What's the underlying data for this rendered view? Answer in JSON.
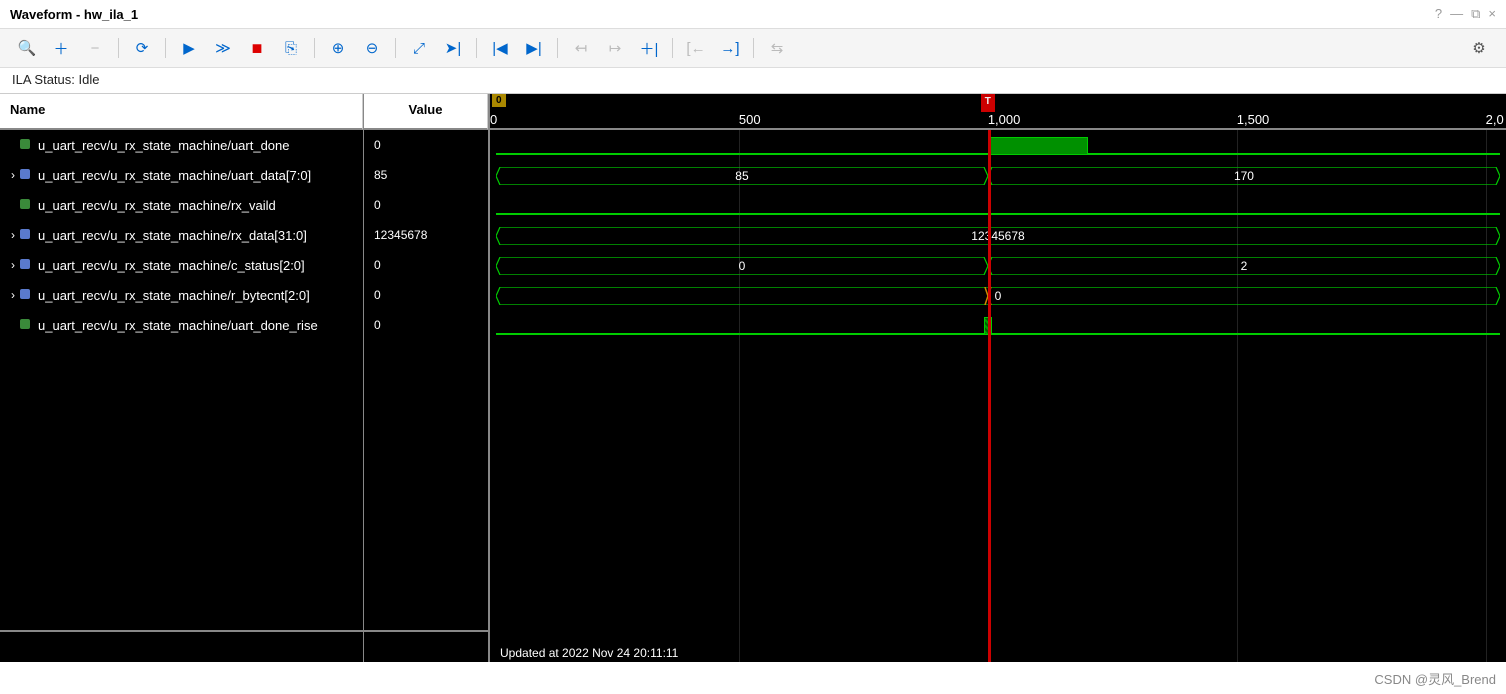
{
  "window": {
    "title": "Waveform - hw_ila_1",
    "help_icon": "?",
    "minimize_icon": "—",
    "maximize_icon": "⧉",
    "close_icon": "×"
  },
  "toolbar": {
    "search": "🔍",
    "add": "＋",
    "remove": "−",
    "refresh": "⟳",
    "play": "▶",
    "ff": "≫",
    "stop": "■",
    "export": "⎘",
    "zoom_in": "⊕",
    "zoom_out": "⊖",
    "fit": "⤢",
    "goto": "➤|",
    "first": "|◀",
    "last": "▶|",
    "prev_edge": "↤",
    "next_edge": "↦",
    "add_marker": "＋|",
    "marker_left": "[←",
    "marker_right": "→]",
    "swap": "⇆",
    "gear": "⚙"
  },
  "status": {
    "text": "ILA Status: Idle"
  },
  "columns": {
    "name": "Name",
    "value": "Value"
  },
  "ruler": {
    "min": 0,
    "max": 2000,
    "ticks": [
      {
        "pos": 0.0,
        "label": "0"
      },
      {
        "pos": 0.245,
        "label": "500"
      },
      {
        "pos": 0.49,
        "label": "1,000"
      },
      {
        "pos": 0.735,
        "label": "1,500"
      },
      {
        "pos": 0.98,
        "label": "2,0"
      }
    ],
    "grid_positions": [
      0.245,
      0.49,
      0.735,
      0.98
    ],
    "cursor_pos": 0.49,
    "cursor_label": "T",
    "zero_label": "0"
  },
  "waveform": {
    "bus_stroke": "#00cc00",
    "bus_fill": "#001800",
    "digital_stroke": "#00cc00",
    "cursor_color": "#cc0000",
    "grid_color": "#222222",
    "bg": "#000000"
  },
  "signals": [
    {
      "name": "u_uart_recv/u_rx_state_machine/uart_done",
      "value": "0",
      "icon": "wire",
      "expandable": false,
      "type": "digital",
      "pulse": {
        "start": 0.49,
        "end": 0.59
      }
    },
    {
      "name": "u_uart_recv/u_rx_state_machine/uart_data[7:0]",
      "value": "85",
      "icon": "bus",
      "expandable": true,
      "type": "bus",
      "segments": [
        {
          "start": 0.0,
          "end": 0.49,
          "label": "85"
        },
        {
          "start": 0.49,
          "end": 1.0,
          "label": "170"
        }
      ]
    },
    {
      "name": "u_uart_recv/u_rx_state_machine/rx_vaild",
      "value": "0",
      "icon": "wire",
      "expandable": false,
      "type": "digital"
    },
    {
      "name": "u_uart_recv/u_rx_state_machine/rx_data[31:0]",
      "value": "12345678",
      "icon": "bus",
      "expandable": true,
      "type": "bus",
      "segments": [
        {
          "start": 0.0,
          "end": 1.0,
          "label": "12345678"
        }
      ]
    },
    {
      "name": "u_uart_recv/u_rx_state_machine/c_status[2:0]",
      "value": "0",
      "icon": "bus",
      "expandable": true,
      "type": "bus",
      "segments": [
        {
          "start": 0.0,
          "end": 0.49,
          "label": "0"
        },
        {
          "start": 0.49,
          "end": 1.0,
          "label": "2"
        }
      ]
    },
    {
      "name": "u_uart_recv/u_rx_state_machine/r_bytecnt[2:0]",
      "value": "0",
      "icon": "bus",
      "expandable": true,
      "type": "bus",
      "segments": [
        {
          "start": 0.0,
          "end": 1.0,
          "label": "0"
        }
      ],
      "narrow_transition_at": 0.49
    },
    {
      "name": "u_uart_recv/u_rx_state_machine/uart_done_rise",
      "value": "0",
      "icon": "wire",
      "expandable": false,
      "type": "digital",
      "xregion": {
        "start": 0.486,
        "end": 0.494
      }
    }
  ],
  "footer": {
    "text": "Updated at 2022 Nov 24 20:11:11"
  },
  "watermark": "CSDN @灵风_Brend"
}
